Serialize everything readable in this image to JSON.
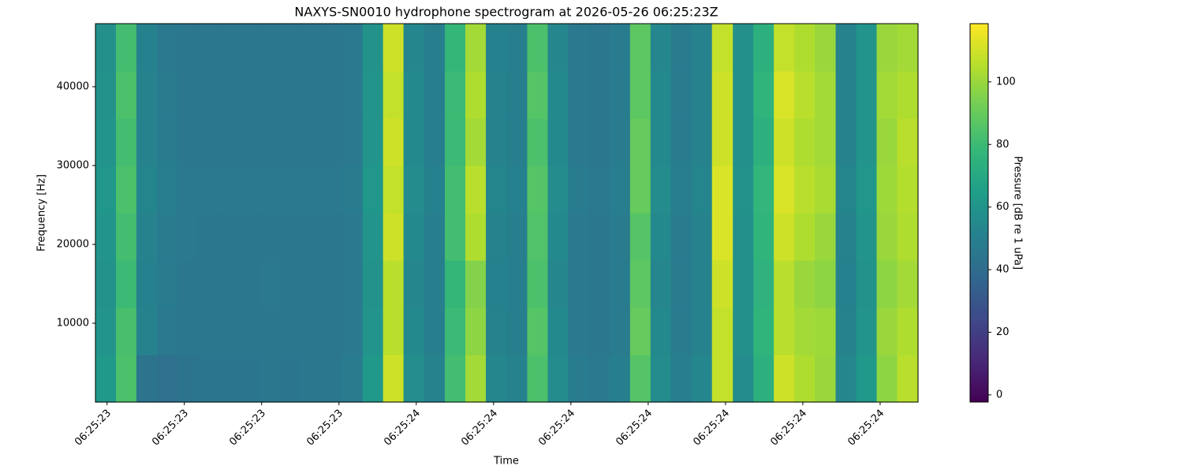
{
  "chart_data": {
    "type": "heatmap",
    "title": "NAXYS-SN0010 hydrophone spectrogram at 2026-05-26 06:25:23Z",
    "xlabel": "Time",
    "ylabel": "Frequency [Hz]",
    "colorbar_label": "Pressure [dB re 1 uPa]",
    "colormap": "viridis",
    "x": [
      23.598,
      23.625,
      23.651,
      23.678,
      23.704,
      23.731,
      23.758,
      23.784,
      23.811,
      23.837,
      23.864,
      23.891,
      23.917,
      23.944,
      23.97,
      23.997,
      24.024,
      24.05,
      24.077,
      24.103,
      24.13,
      24.157,
      24.183,
      24.21,
      24.236,
      24.263,
      24.29,
      24.316,
      24.343,
      24.369,
      24.396,
      24.423,
      24.449,
      24.476,
      24.502,
      24.529,
      24.556,
      24.582,
      24.609,
      24.635
    ],
    "y": [
      3000,
      9000,
      15000,
      21000,
      27000,
      33000,
      39000,
      45000
    ],
    "z": [
      [
        62,
        84,
        44,
        42,
        44,
        45,
        45,
        45,
        46,
        45,
        46,
        46,
        48,
        62,
        110,
        57,
        52,
        82,
        102,
        54,
        52,
        84,
        56,
        48,
        47,
        50,
        86,
        56,
        49,
        54,
        108,
        56,
        74,
        110,
        104,
        100,
        54,
        62,
        98,
        106
      ],
      [
        60,
        83,
        52,
        47,
        46,
        46,
        46,
        46,
        46,
        46,
        46,
        46,
        47,
        60,
        106,
        55,
        50,
        80,
        98,
        52,
        50,
        86,
        55,
        47,
        46,
        48,
        90,
        55,
        48,
        52,
        108,
        58,
        76,
        106,
        102,
        101,
        52,
        60,
        100,
        104
      ],
      [
        59,
        80,
        51,
        48,
        46,
        46,
        46,
        46,
        47,
        46,
        46,
        46,
        47,
        59,
        106,
        54,
        50,
        78,
        96,
        51,
        50,
        84,
        54,
        47,
        46,
        48,
        88,
        54,
        48,
        52,
        110,
        58,
        75,
        106,
        100,
        98,
        51,
        59,
        98,
        102
      ],
      [
        60,
        82,
        52,
        48,
        47,
        46,
        46,
        46,
        46,
        46,
        46,
        46,
        47,
        60,
        110,
        55,
        50,
        82,
        104,
        52,
        50,
        85,
        55,
        47,
        46,
        48,
        86,
        55,
        48,
        52,
        112,
        58,
        76,
        110,
        104,
        100,
        52,
        60,
        100,
        104
      ],
      [
        61,
        84,
        53,
        49,
        47,
        47,
        47,
        47,
        47,
        47,
        47,
        47,
        48,
        61,
        108,
        56,
        51,
        82,
        106,
        53,
        51,
        86,
        56,
        48,
        47,
        49,
        90,
        56,
        49,
        53,
        112,
        59,
        77,
        112,
        106,
        103,
        53,
        61,
        101,
        105
      ],
      [
        60,
        82,
        52,
        48,
        46,
        46,
        46,
        46,
        46,
        46,
        46,
        46,
        47,
        60,
        110,
        55,
        50,
        80,
        102,
        52,
        50,
        84,
        55,
        47,
        46,
        48,
        90,
        55,
        48,
        52,
        110,
        58,
        74,
        110,
        104,
        102,
        52,
        60,
        100,
        106
      ],
      [
        59,
        84,
        52,
        48,
        46,
        46,
        46,
        46,
        46,
        46,
        46,
        46,
        47,
        60,
        108,
        55,
        50,
        80,
        104,
        52,
        50,
        86,
        55,
        47,
        46,
        48,
        88,
        55,
        48,
        52,
        110,
        58,
        76,
        112,
        106,
        102,
        52,
        60,
        102,
        104
      ],
      [
        58,
        82,
        51,
        47,
        46,
        46,
        46,
        46,
        46,
        46,
        46,
        46,
        47,
        59,
        110,
        54,
        50,
        78,
        102,
        51,
        50,
        84,
        54,
        47,
        46,
        48,
        88,
        54,
        48,
        52,
        108,
        58,
        74,
        108,
        104,
        100,
        52,
        60,
        100,
        102
      ]
    ],
    "xlim": [
      23.585,
      24.649
    ],
    "ylim": [
      0,
      48000
    ],
    "xticks": [
      {
        "value": 23.6,
        "label": "06:25:23"
      },
      {
        "value": 23.7,
        "label": "06:25:23"
      },
      {
        "value": 23.8,
        "label": "06:25:23"
      },
      {
        "value": 23.9,
        "label": "06:25:23"
      },
      {
        "value": 24.0,
        "label": "06:25:24"
      },
      {
        "value": 24.1,
        "label": "06:25:24"
      },
      {
        "value": 24.2,
        "label": "06:25:24"
      },
      {
        "value": 24.3,
        "label": "06:25:24"
      },
      {
        "value": 24.4,
        "label": "06:25:24"
      },
      {
        "value": 24.5,
        "label": "06:25:24"
      },
      {
        "value": 24.6,
        "label": "06:25:24"
      }
    ],
    "yticks": [
      10000,
      20000,
      30000,
      40000
    ],
    "clim": [
      -2.3,
      118.6
    ],
    "cticks": [
      0,
      20,
      40,
      60,
      80,
      100
    ]
  }
}
